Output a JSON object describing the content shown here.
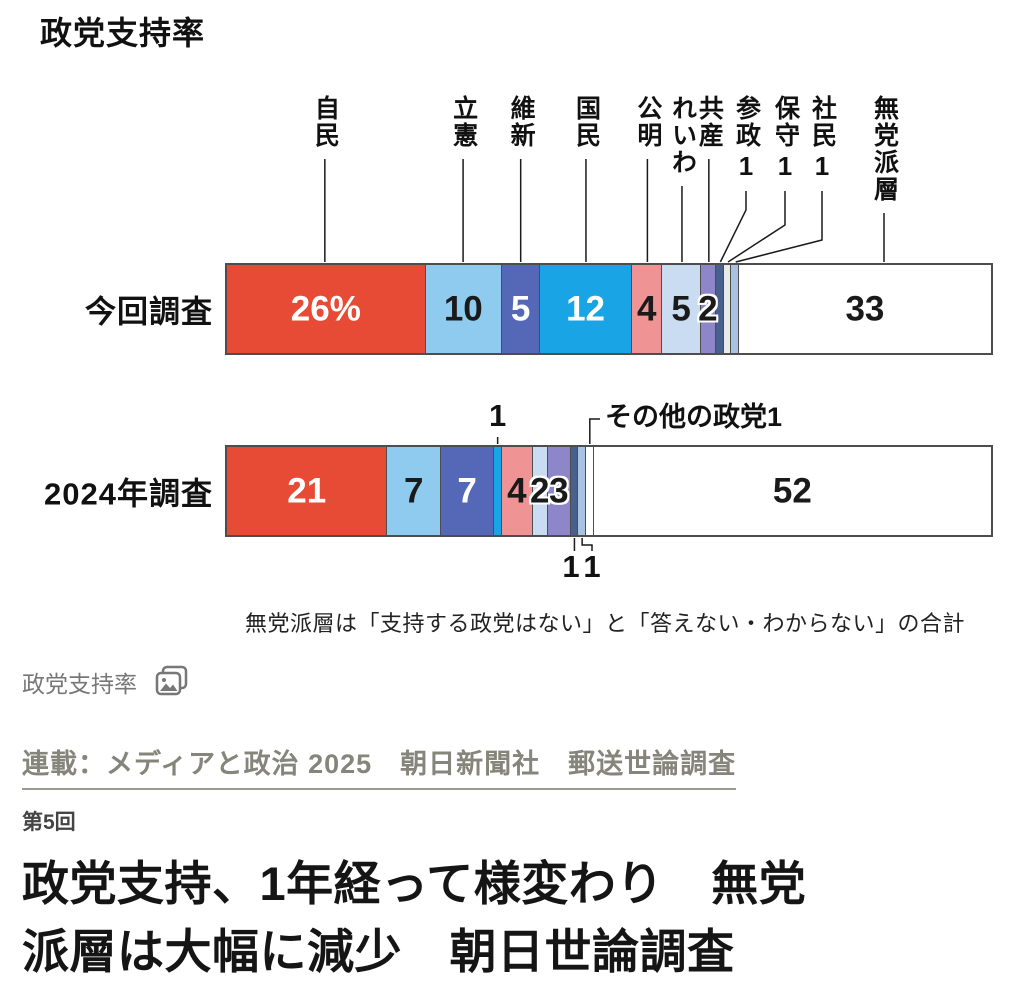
{
  "page": {
    "chart_title": "政党支持率",
    "caption": "政党支持率",
    "series_link": "連載：メディアと政治 2025　朝日新聞社　郵送世論調査",
    "episode": "第5回",
    "headline_line1": "政党支持、1年経って様変わり　無党",
    "headline_line2": "派層は大幅に減少　朝日世論調査"
  },
  "chart_data": {
    "type": "bar",
    "subtype": "horizontal-stacked",
    "unit": "%",
    "title": "政党支持率",
    "categories": [
      "今回調査",
      "2024年調査"
    ],
    "note": "無党派層は「支持する政党はない」と「答えない・わからない」の合計",
    "axis_range": [
      0,
      100
    ],
    "series": [
      {
        "name": "自民",
        "color": "#e84b35",
        "text_color": "#ffffff",
        "values": [
          26,
          21
        ],
        "display": [
          "26%",
          "21"
        ]
      },
      {
        "name": "立憲",
        "color": "#8ecbee",
        "text_color": "#1a1a1a",
        "values": [
          10,
          7
        ],
        "display": [
          "10",
          "7"
        ]
      },
      {
        "name": "維新",
        "color": "#5568b8",
        "text_color": "#ffffff",
        "values": [
          5,
          7
        ],
        "display": [
          "5",
          "7"
        ]
      },
      {
        "name": "国民",
        "color": "#19a4e6",
        "text_color": "#ffffff",
        "values": [
          12,
          1
        ],
        "display": [
          "12",
          "1"
        ]
      },
      {
        "name": "公明",
        "color": "#f09394",
        "text_color": "#1a1a1a",
        "values": [
          4,
          4
        ],
        "display": [
          "4",
          "4"
        ]
      },
      {
        "name": "れいわ",
        "color": "#cadcf2",
        "text_color": "#1a1a1a",
        "values": [
          5,
          2
        ],
        "display": [
          "5",
          "2"
        ]
      },
      {
        "name": "共産",
        "color": "#8d86c8",
        "text_color": "#1a1a1a",
        "values": [
          2,
          3
        ],
        "display": [
          "2",
          "3"
        ]
      },
      {
        "name": "参政",
        "color": "#49608c",
        "text_color": "#1a1a1a",
        "values": [
          1,
          1
        ],
        "display": [
          "1",
          "1"
        ]
      },
      {
        "name": "保守",
        "color": "#e9ebe8",
        "text_color": "#1a1a1a",
        "values": [
          1,
          null
        ],
        "display": [
          "1",
          null
        ]
      },
      {
        "name": "社民",
        "color": "#a9c2e1",
        "text_color": "#1a1a1a",
        "values": [
          1,
          1
        ],
        "display": [
          "1",
          "1"
        ]
      },
      {
        "name": "その他の政党",
        "color": "#ffffff",
        "text_color": "#1a1a1a",
        "values": [
          null,
          1
        ],
        "display": [
          null,
          "1"
        ]
      },
      {
        "name": "無党派層",
        "color": "#ffffff",
        "text_color": "#1a1a1a",
        "values": [
          33,
          52
        ],
        "display": [
          "33",
          "52"
        ]
      }
    ]
  }
}
